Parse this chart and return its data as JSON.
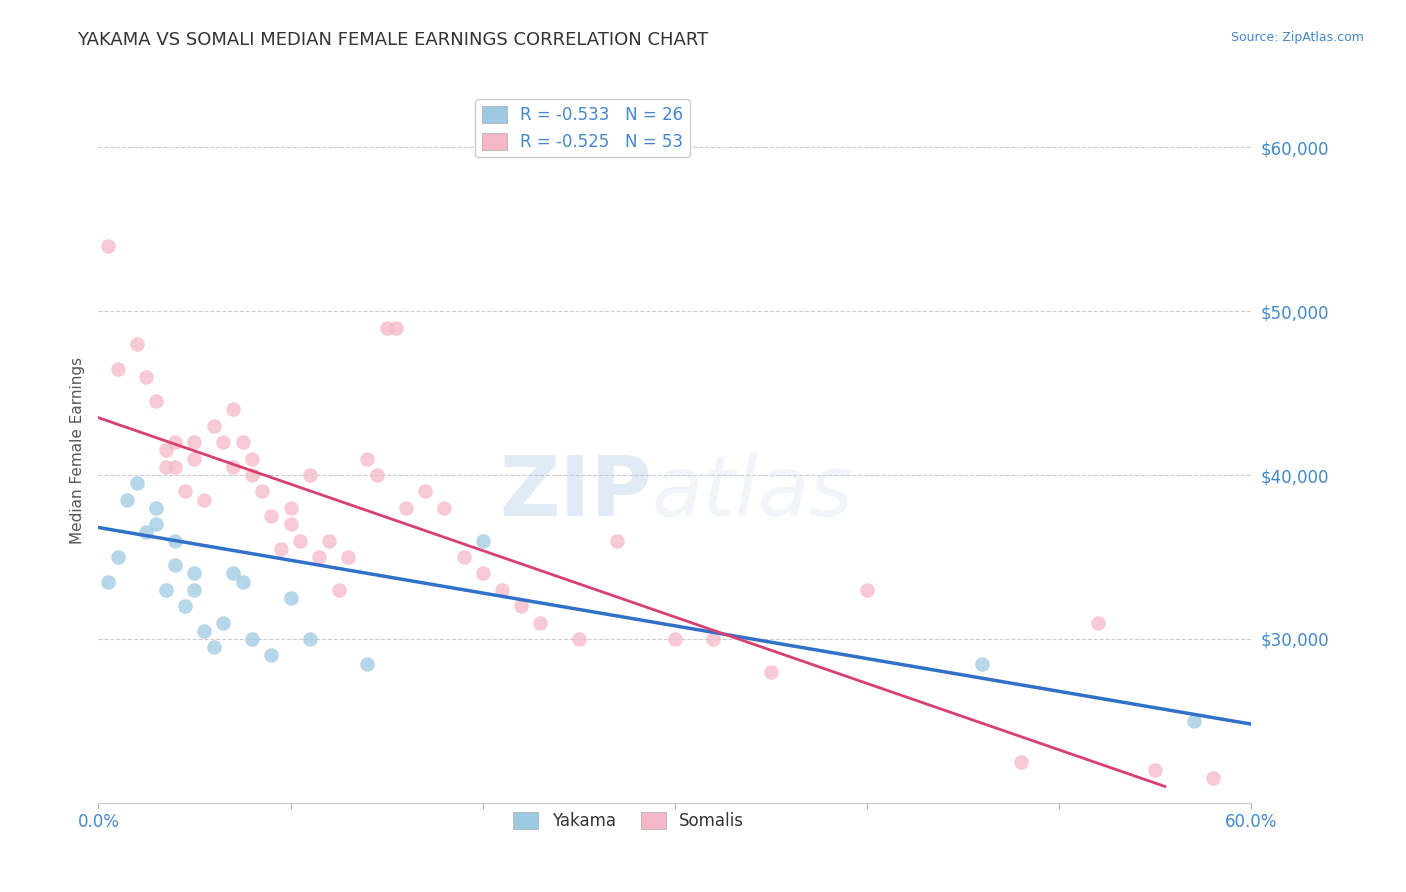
{
  "title": "YAKAMA VS SOMALI MEDIAN FEMALE EARNINGS CORRELATION CHART",
  "source": "Source: ZipAtlas.com",
  "ylabel_label": "Median Female Earnings",
  "xlim": [
    0.0,
    0.6
  ],
  "ylim": [
    20000,
    63000
  ],
  "yticks": [
    30000,
    40000,
    50000,
    60000
  ],
  "ytick_labels": [
    "$30,000",
    "$40,000",
    "$50,000",
    "$60,000"
  ],
  "xticks": [
    0.0,
    0.1,
    0.2,
    0.3,
    0.4,
    0.5,
    0.6
  ],
  "xtick_labels": [
    "0.0%",
    "",
    "",
    "",
    "",
    "",
    "60.0%"
  ],
  "yakama_label": "Yakama",
  "somali_label": "Somalis",
  "blue_color": "#9ecae1",
  "pink_color": "#f4b8c8",
  "blue_line_color": "#3070c8",
  "pink_line_color": "#d84070",
  "watermark1": "ZIP",
  "watermark2": "atlas",
  "blue_scatter_x": [
    0.005,
    0.01,
    0.015,
    0.02,
    0.025,
    0.03,
    0.03,
    0.035,
    0.04,
    0.04,
    0.045,
    0.05,
    0.05,
    0.055,
    0.06,
    0.065,
    0.07,
    0.075,
    0.08,
    0.09,
    0.1,
    0.11,
    0.14,
    0.2,
    0.46,
    0.57
  ],
  "blue_scatter_y": [
    33500,
    35000,
    38500,
    39500,
    36500,
    38000,
    37000,
    33000,
    36000,
    34500,
    32000,
    34000,
    33000,
    30500,
    29500,
    31000,
    34000,
    33500,
    30000,
    29000,
    32500,
    30000,
    28500,
    36000,
    28500,
    25000
  ],
  "pink_scatter_x": [
    0.005,
    0.01,
    0.02,
    0.025,
    0.03,
    0.035,
    0.035,
    0.04,
    0.04,
    0.045,
    0.05,
    0.05,
    0.055,
    0.06,
    0.065,
    0.07,
    0.07,
    0.075,
    0.08,
    0.08,
    0.085,
    0.09,
    0.095,
    0.1,
    0.1,
    0.105,
    0.11,
    0.115,
    0.12,
    0.125,
    0.13,
    0.14,
    0.145,
    0.15,
    0.155,
    0.16,
    0.17,
    0.18,
    0.19,
    0.2,
    0.21,
    0.22,
    0.23,
    0.25,
    0.27,
    0.3,
    0.32,
    0.35,
    0.4,
    0.48,
    0.52,
    0.55,
    0.58
  ],
  "pink_scatter_y": [
    54000,
    46500,
    48000,
    46000,
    44500,
    41500,
    40500,
    42000,
    40500,
    39000,
    42000,
    41000,
    38500,
    43000,
    42000,
    44000,
    40500,
    42000,
    41000,
    40000,
    39000,
    37500,
    35500,
    38000,
    37000,
    36000,
    40000,
    35000,
    36000,
    33000,
    35000,
    41000,
    40000,
    49000,
    49000,
    38000,
    39000,
    38000,
    35000,
    34000,
    33000,
    32000,
    31000,
    30000,
    36000,
    30000,
    30000,
    28000,
    33000,
    22500,
    31000,
    22000,
    21500
  ],
  "blue_line_x0": 0.0,
  "blue_line_x1": 0.6,
  "blue_line_y0": 36800,
  "blue_line_y1": 24800,
  "pink_line_x0": 0.0,
  "pink_line_x1": 0.555,
  "pink_line_y0": 43500,
  "pink_line_y1": 21000,
  "background_color": "#ffffff",
  "grid_color": "#cccccc",
  "title_color": "#333333",
  "title_fontsize": 13,
  "axis_label_color": "#555555",
  "tick_color_x": "#4488cc",
  "tick_color_y": "#4488cc",
  "legend_R_blue": "R = -0.533",
  "legend_N_blue": "N = 26",
  "legend_R_pink": "R = -0.525",
  "legend_N_pink": "N = 53"
}
